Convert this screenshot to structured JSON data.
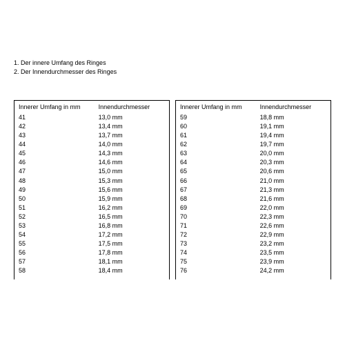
{
  "notes": {
    "line1": "1. Der innere Umfang des Ringes",
    "line2": "2. Der Innendurchmesser des Ringes"
  },
  "tableLeft": {
    "header_col1": "Innerer Umfang in mm",
    "header_col2": "Innendurchmesser",
    "rows": [
      {
        "c1": "41",
        "c2": "13,0 mm"
      },
      {
        "c1": "42",
        "c2": "13,4 mm"
      },
      {
        "c1": "43",
        "c2": "13,7 mm"
      },
      {
        "c1": "44",
        "c2": "14,0 mm"
      },
      {
        "c1": "45",
        "c2": "14,3 mm"
      },
      {
        "c1": "46",
        "c2": "14,6 mm"
      },
      {
        "c1": "47",
        "c2": "15,0 mm"
      },
      {
        "c1": "48",
        "c2": "15,3 mm"
      },
      {
        "c1": "49",
        "c2": "15,6 mm"
      },
      {
        "c1": "50",
        "c2": "15,9 mm"
      },
      {
        "c1": "51",
        "c2": "16,2 mm"
      },
      {
        "c1": "52",
        "c2": "16,5 mm"
      },
      {
        "c1": "53",
        "c2": "16,8 mm"
      },
      {
        "c1": "54",
        "c2": "17,2 mm"
      },
      {
        "c1": "55",
        "c2": "17,5 mm"
      },
      {
        "c1": "56",
        "c2": "17,8 mm"
      },
      {
        "c1": "57",
        "c2": "18,1 mm"
      },
      {
        "c1": "58",
        "c2": "18,4 mm"
      }
    ]
  },
  "tableRight": {
    "header_col1": "Innerer Umfang in mm",
    "header_col2": "Innendurchmesser",
    "rows": [
      {
        "c1": "59",
        "c2": "18,8 mm"
      },
      {
        "c1": "60",
        "c2": "19,1 mm"
      },
      {
        "c1": "61",
        "c2": "19,4 mm"
      },
      {
        "c1": "62",
        "c2": "19,7 mm"
      },
      {
        "c1": "63",
        "c2": "20,0 mm"
      },
      {
        "c1": "64",
        "c2": "20,3 mm"
      },
      {
        "c1": "65",
        "c2": "20,6 mm"
      },
      {
        "c1": "66",
        "c2": "21,0 mm"
      },
      {
        "c1": "67",
        "c2": "21,3 mm"
      },
      {
        "c1": "68",
        "c2": "21,6 mm"
      },
      {
        "c1": "69",
        "c2": "22,0 mm"
      },
      {
        "c1": "70",
        "c2": "22,3 mm"
      },
      {
        "c1": "71",
        "c2": "22,6 mm"
      },
      {
        "c1": "72",
        "c2": "22,9 mm"
      },
      {
        "c1": "73",
        "c2": "23,2 mm"
      },
      {
        "c1": "74",
        "c2": "23,5 mm"
      },
      {
        "c1": "75",
        "c2": "23,9 mm"
      },
      {
        "c1": "76",
        "c2": "24,2 mm"
      }
    ]
  },
  "style": {
    "font_family": "Arial",
    "font_size_pt": 9,
    "text_color": "#000000",
    "background_color": "#ffffff",
    "border_color": "#000000"
  }
}
